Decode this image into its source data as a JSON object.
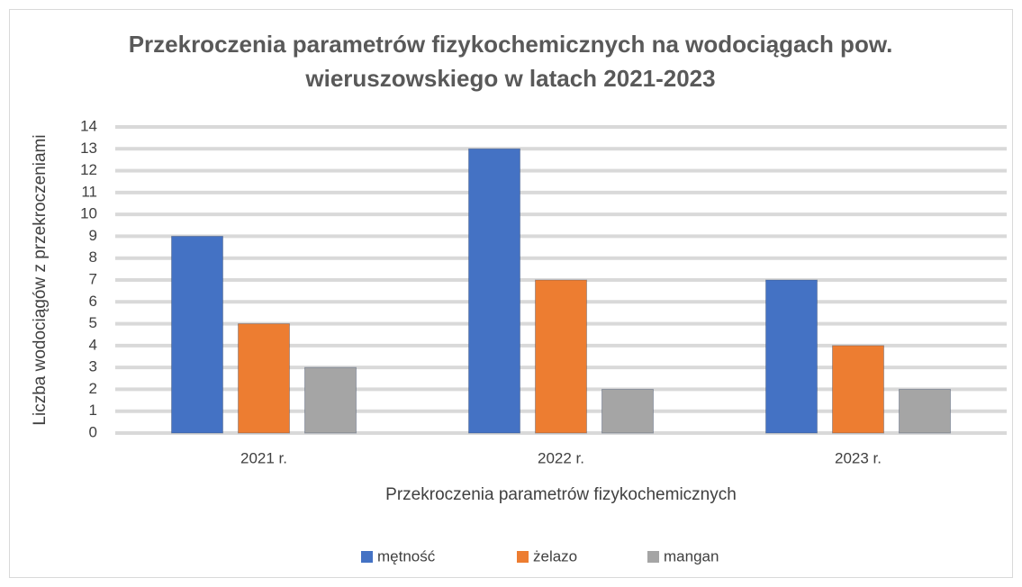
{
  "chart_data": {
    "type": "bar",
    "title": "Przekroczenia parametrów fizykochemicznych na wodociągach pow. wieruszowskiego w latach 2021-2023",
    "x_label": "Przekroczenia parametrów fizykochemicznych",
    "y_label": "Liczba wodociągów z przekroczeniami",
    "categories": [
      "2021 r.",
      "2022 r.",
      "2023 r."
    ],
    "series": [
      {
        "name": "mętność",
        "color": "#4472c4",
        "values": [
          9,
          13,
          7
        ]
      },
      {
        "name": "żelazo",
        "color": "#ed7d31",
        "values": [
          5,
          7,
          4
        ]
      },
      {
        "name": "mangan",
        "color": "#a5a5a5",
        "values": [
          3,
          2,
          2
        ]
      }
    ],
    "ylim": [
      0,
      14
    ],
    "yticks": [
      0,
      1,
      2,
      3,
      4,
      5,
      6,
      7,
      8,
      9,
      10,
      11,
      12,
      13,
      14
    ],
    "grid": true,
    "legend": "bottom"
  }
}
